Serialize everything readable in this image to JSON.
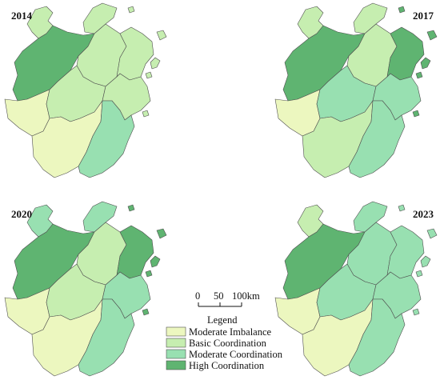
{
  "colors": {
    "moderate_imbalance": "#ecf7bf",
    "basic_coordination": "#c6eeb0",
    "moderate_coordination": "#98e0b1",
    "high_coordination": "#5fb471",
    "border": "#4f4f4f"
  },
  "panels": [
    {
      "year": "2014",
      "regions": {
        "north_a": "basic_coordination",
        "north_b": "basic_coordination",
        "northwest": "high_coordination",
        "central_north": "basic_coordination",
        "northeast": "basic_coordination",
        "west": "moderate_imbalance",
        "center": "basic_coordination",
        "east_center": "basic_coordination",
        "southwest": "moderate_imbalance",
        "southeast": "moderate_coordination",
        "islands": "basic_coordination"
      }
    },
    {
      "year": "2017",
      "regions": {
        "north_a": "basic_coordination",
        "north_b": "basic_coordination",
        "northwest": "high_coordination",
        "central_north": "basic_coordination",
        "northeast": "high_coordination",
        "west": "moderate_imbalance",
        "center": "moderate_coordination",
        "east_center": "moderate_coordination",
        "southwest": "basic_coordination",
        "southeast": "moderate_coordination",
        "islands": "high_coordination"
      }
    },
    {
      "year": "2020",
      "regions": {
        "north_a": "moderate_coordination",
        "north_b": "moderate_coordination",
        "northwest": "high_coordination",
        "central_north": "basic_coordination",
        "northeast": "high_coordination",
        "west": "moderate_imbalance",
        "center": "basic_coordination",
        "east_center": "moderate_coordination",
        "southwest": "moderate_imbalance",
        "southeast": "moderate_coordination",
        "islands": "high_coordination"
      }
    },
    {
      "year": "2023",
      "regions": {
        "north_a": "basic_coordination",
        "north_b": "moderate_coordination",
        "northwest": "high_coordination",
        "central_north": "moderate_coordination",
        "northeast": "moderate_coordination",
        "west": "moderate_imbalance",
        "center": "moderate_coordination",
        "east_center": "moderate_coordination",
        "southwest": "moderate_imbalance",
        "southeast": "moderate_coordination",
        "islands": "moderate_coordination"
      }
    }
  ],
  "scale_bar": {
    "labels": [
      "0",
      "50",
      "100km"
    ]
  },
  "legend": {
    "title": "Legend",
    "items": [
      {
        "label": "Moderate Imbalance",
        "class": "moderate_imbalance"
      },
      {
        "label": "Basic Coordination",
        "class": "basic_coordination"
      },
      {
        "label": "Moderate Coordination",
        "class": "moderate_coordination"
      },
      {
        "label": "High Coordination",
        "class": "high_coordination"
      }
    ]
  }
}
